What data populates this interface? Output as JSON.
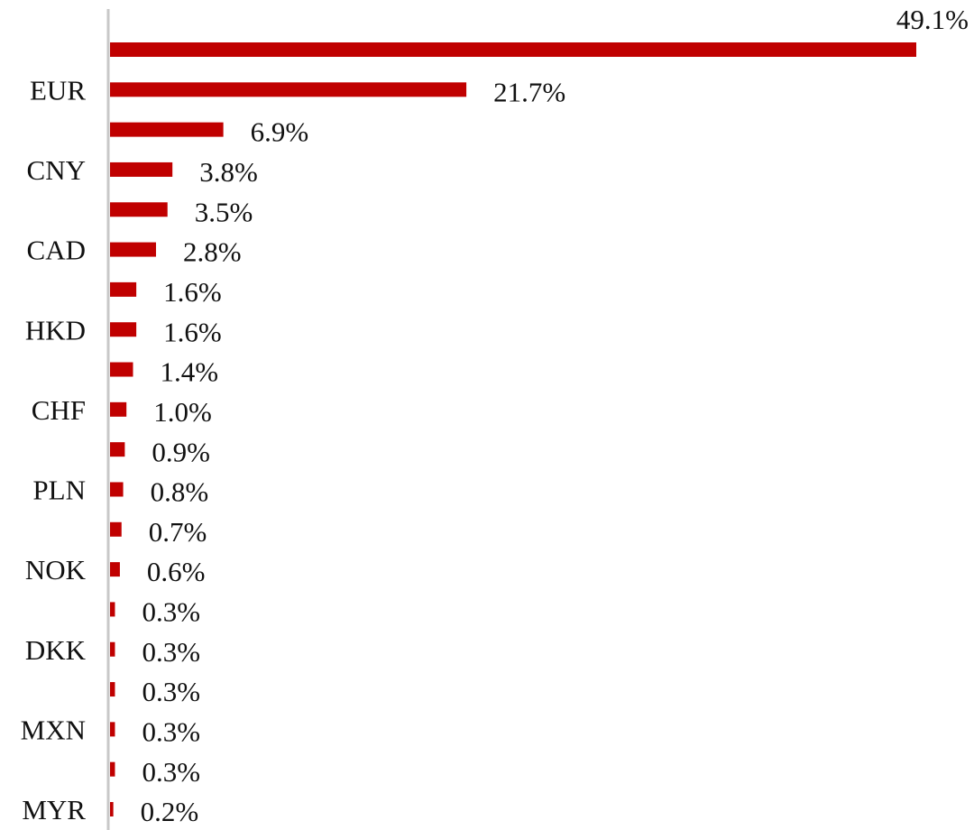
{
  "chart_data": {
    "type": "bar",
    "orientation": "horizontal",
    "categories": [
      null,
      "EUR",
      null,
      "CNY",
      null,
      "CAD",
      null,
      "HKD",
      null,
      "CHF",
      null,
      "PLN",
      null,
      "NOK",
      null,
      "DKK",
      null,
      "MXN",
      null,
      "MYR"
    ],
    "values": [
      49.1,
      21.7,
      6.9,
      3.8,
      3.5,
      2.8,
      1.6,
      1.6,
      1.4,
      1.0,
      0.9,
      0.8,
      0.7,
      0.6,
      0.3,
      0.3,
      0.3,
      0.3,
      0.3,
      0.2
    ],
    "value_labels": [
      "49.1%",
      "21.7%",
      "6.9%",
      "3.8%",
      "3.5%",
      "2.8%",
      "1.6%",
      "1.6%",
      "1.4%",
      "1.0%",
      "0.9%",
      "0.8%",
      "0.7%",
      "0.6%",
      "0.3%",
      "0.3%",
      "0.3%",
      "0.3%",
      "0.3%",
      "0.2%"
    ],
    "color": "#c00000"
  }
}
